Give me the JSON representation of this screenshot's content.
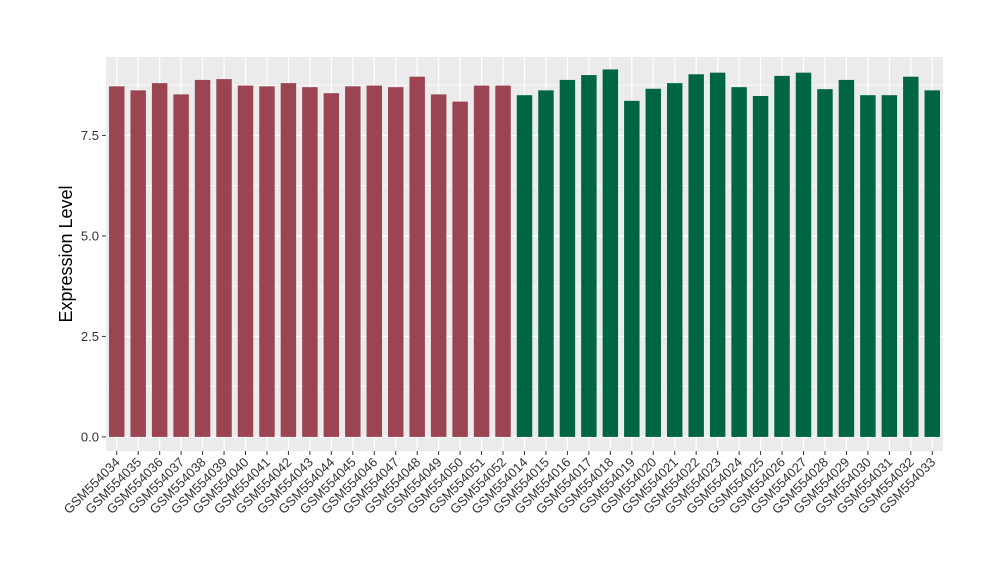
{
  "chart_data": {
    "type": "bar",
    "title": "",
    "xlabel": "",
    "ylabel": "Expression Level",
    "ylim": [
      -0.35,
      9.45
    ],
    "yticks": [
      0.0,
      2.5,
      5.0,
      7.5
    ],
    "ytick_labels": [
      "0.0",
      "2.5",
      "5.0",
      "7.5"
    ],
    "grid": true,
    "legend": "none",
    "background": "#ebebeb",
    "grid_color": "#ffffff",
    "categories": [
      "GSM554034",
      "GSM554035",
      "GSM554036",
      "GSM554037",
      "GSM554038",
      "GSM554039",
      "GSM554040",
      "GSM554041",
      "GSM554042",
      "GSM554043",
      "GSM554044",
      "GSM554045",
      "GSM554046",
      "GSM554047",
      "GSM554048",
      "GSM554049",
      "GSM554050",
      "GSM554051",
      "GSM554052",
      "GSM554014",
      "GSM554015",
      "GSM554016",
      "GSM554017",
      "GSM554018",
      "GSM554019",
      "GSM554020",
      "GSM554021",
      "GSM554022",
      "GSM554023",
      "GSM554024",
      "GSM554025",
      "GSM554026",
      "GSM554027",
      "GSM554028",
      "GSM554029",
      "GSM554030",
      "GSM554031",
      "GSM554032",
      "GSM554033"
    ],
    "values": [
      8.72,
      8.62,
      8.8,
      8.52,
      8.88,
      8.9,
      8.74,
      8.72,
      8.8,
      8.7,
      8.55,
      8.72,
      8.74,
      8.7,
      8.96,
      8.52,
      8.34,
      8.74,
      8.74,
      8.5,
      8.62,
      8.88,
      9.0,
      9.14,
      8.36,
      8.66,
      8.8,
      9.02,
      9.06,
      8.7,
      8.48,
      8.98,
      9.06,
      8.65,
      8.88,
      8.5,
      8.5,
      8.96,
      8.62
    ],
    "groups": [
      1,
      1,
      1,
      1,
      1,
      1,
      1,
      1,
      1,
      1,
      1,
      1,
      1,
      1,
      1,
      1,
      1,
      1,
      1,
      2,
      2,
      2,
      2,
      2,
      2,
      2,
      2,
      2,
      2,
      2,
      2,
      2,
      2,
      2,
      2,
      2,
      2,
      2,
      2
    ],
    "colors": {
      "group1": "#9b4452",
      "group2": "#006544"
    }
  }
}
